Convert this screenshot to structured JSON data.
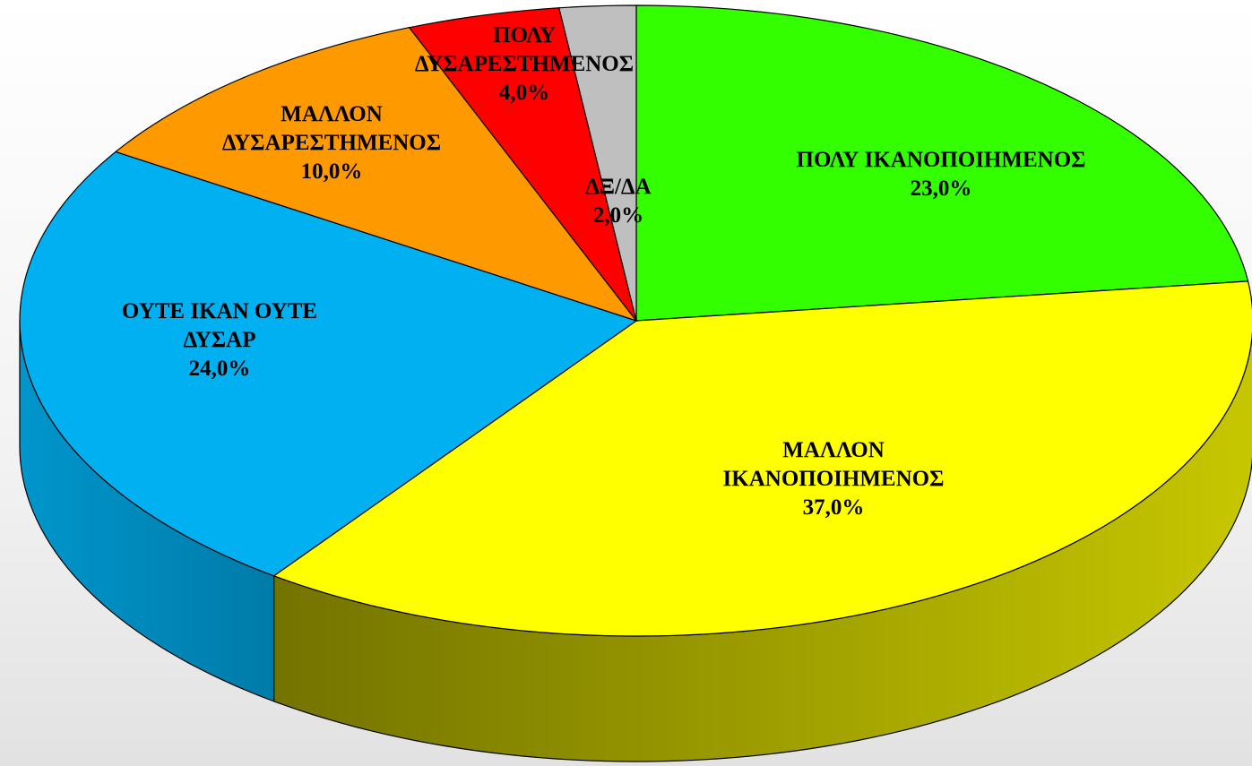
{
  "chart_data": {
    "type": "pie",
    "categories": [
      "ΠΟΛΥ ΙΚΑΝΟΠΟΙΗΜΕΝΟΣ",
      "ΜΑΛΛΟΝ ΙΚΑΝΟΠΟΙΗΜΕΝΟΣ",
      "ΟΥΤΕ ΙΚΑΝ ΟΥΤΕ ΔΥΣΑΡ",
      "ΜΑΛΛΟΝ ΔΥΣΑΡΕΣΤΗΜΕΝΟΣ",
      "ΠΟΛΥ ΔΥΣΑΡΕΣΤΗΜΕΝΟΣ",
      "ΔΞ/ΔΑ"
    ],
    "values": [
      23,
      37,
      24,
      10,
      4,
      2
    ],
    "value_labels": [
      "23,0%",
      "37,0%",
      "24,0%",
      "10,0%",
      "4,0%",
      "2,0%"
    ],
    "colors": [
      "#33ff00",
      "#ffff00",
      "#00b0f0",
      "#ff9900",
      "#ff0000",
      "#bfbfbf"
    ]
  }
}
